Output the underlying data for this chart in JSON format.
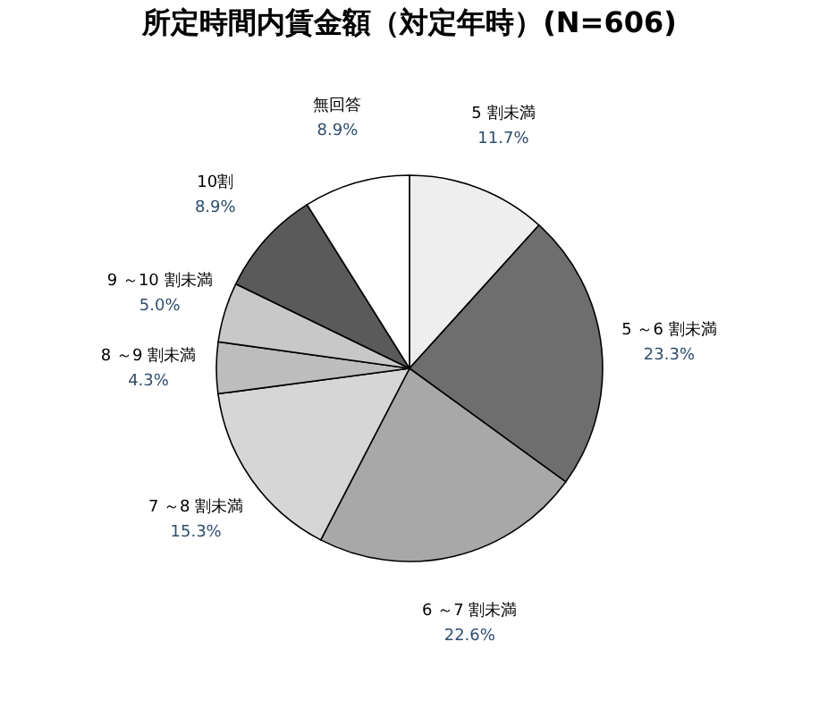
{
  "chart_data": {
    "type": "pie",
    "title": "所定時間内賃金額（対定年時）(N=606)",
    "categories": [
      "5 割未満",
      "5 ～6 割未満",
      "6 ～7 割未満",
      "7 ～8 割未満",
      "8 ～9 割未満",
      "9 ～10 割未満",
      "10割",
      "無回答"
    ],
    "values": [
      11.7,
      23.3,
      22.6,
      15.3,
      4.3,
      5.0,
      8.9,
      8.9
    ],
    "value_labels": [
      "11.7%",
      "23.3%",
      "22.6%",
      "15.3%",
      "4.3%",
      "5.0%",
      "8.9%",
      "8.9%"
    ],
    "colors": [
      "#eeeeee",
      "#6e6e6e",
      "#a8a8a8",
      "#d6d6d6",
      "#bdbdbd",
      "#c8c8c8",
      "#5a5a5a",
      "#ffffff"
    ],
    "legend": false
  }
}
